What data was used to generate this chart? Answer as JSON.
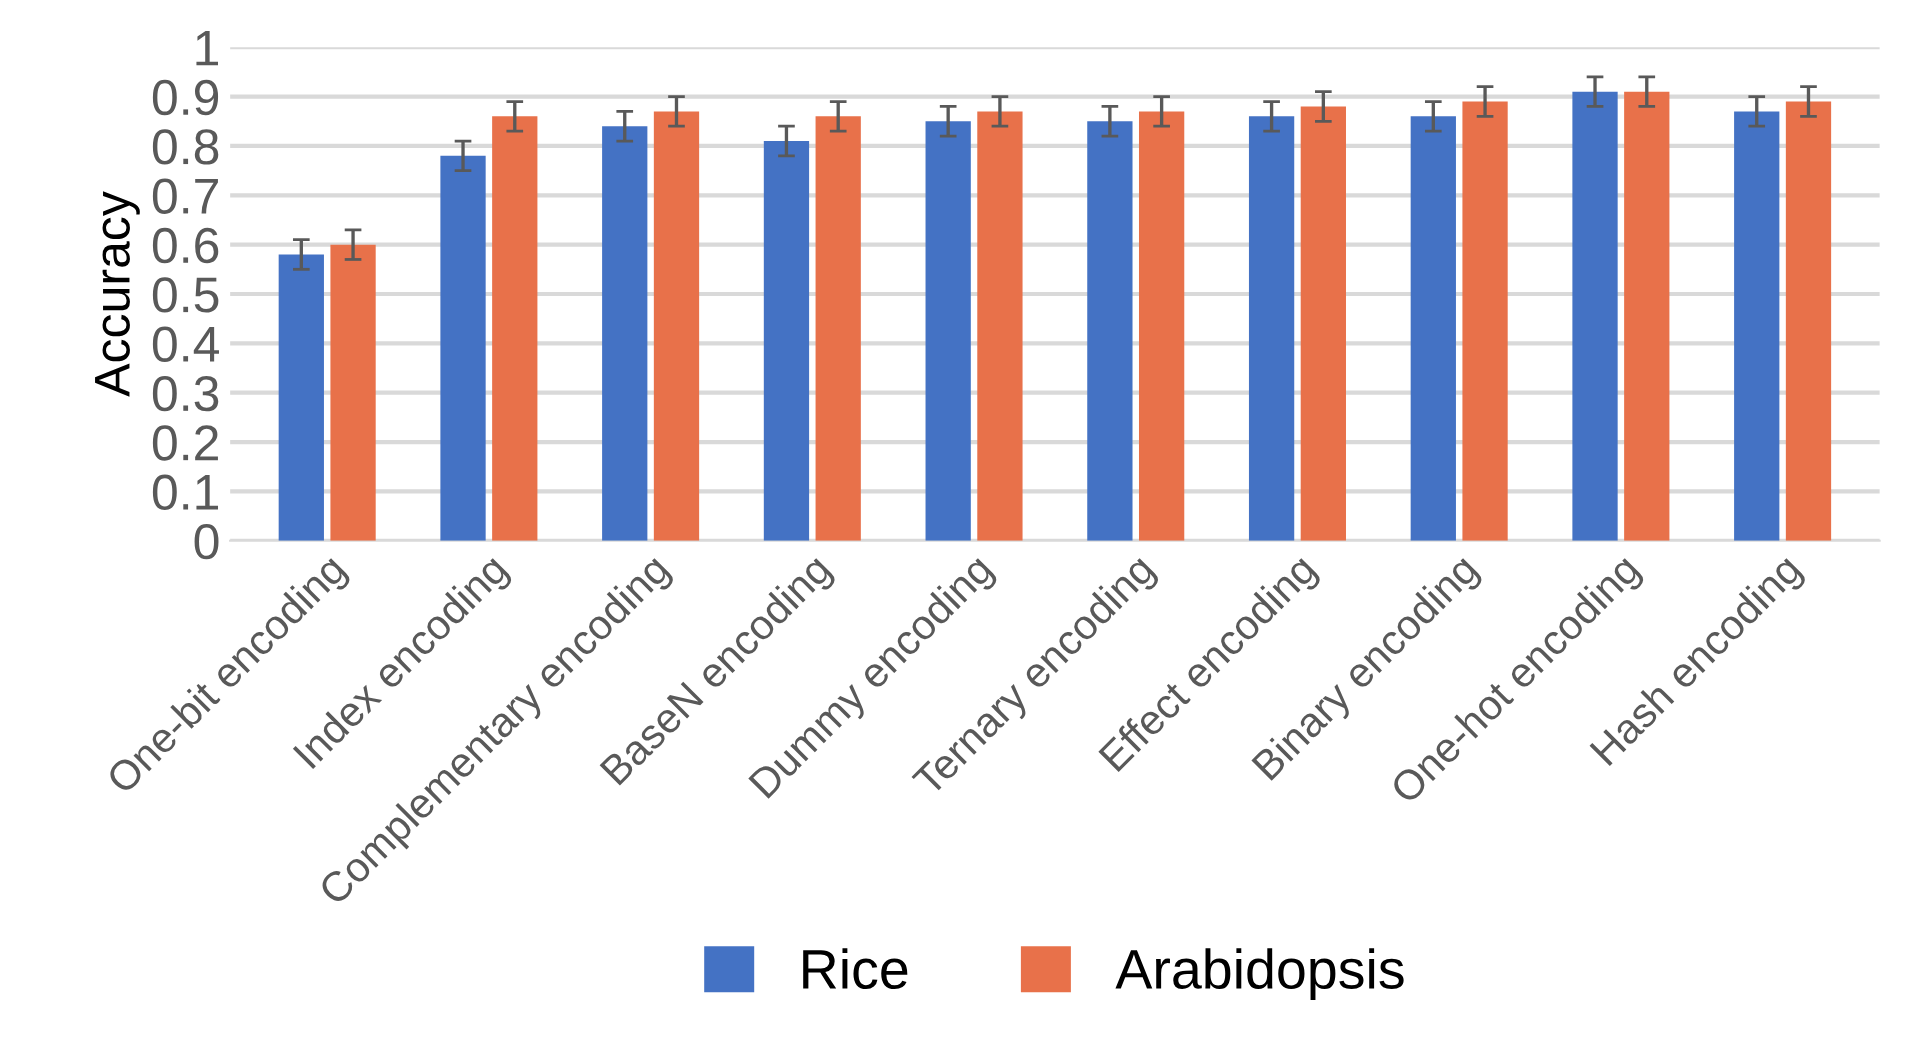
{
  "chart_data": {
    "type": "bar",
    "ylabel": "Accuracy",
    "categories": [
      "One-bit encoding",
      "Index encoding",
      "Complementary encoding",
      "BaseN encoding",
      "Dummy encoding",
      "Ternary encoding",
      "Effect encoding",
      "Binary encoding",
      "One-hot encoding",
      "Hash encoding"
    ],
    "series": [
      {
        "name": "Rice",
        "color": "#4472c4",
        "values": [
          0.58,
          0.78,
          0.84,
          0.81,
          0.85,
          0.85,
          0.86,
          0.86,
          0.91,
          0.87
        ],
        "errors": [
          0.03,
          0.03,
          0.03,
          0.03,
          0.03,
          0.03,
          0.03,
          0.03,
          0.03,
          0.03
        ]
      },
      {
        "name": "Arabidopsis",
        "color": "#e8714a",
        "values": [
          0.6,
          0.86,
          0.87,
          0.86,
          0.87,
          0.87,
          0.88,
          0.89,
          0.91,
          0.89
        ],
        "errors": [
          0.03,
          0.03,
          0.03,
          0.03,
          0.03,
          0.03,
          0.03,
          0.03,
          0.03,
          0.03
        ]
      }
    ],
    "ylim": [
      0,
      1
    ],
    "yticks": [
      0,
      0.1,
      0.2,
      0.3,
      0.4,
      0.5,
      0.6,
      0.7,
      0.8,
      0.9,
      1
    ],
    "grid": "y",
    "legend": "bottom"
  }
}
